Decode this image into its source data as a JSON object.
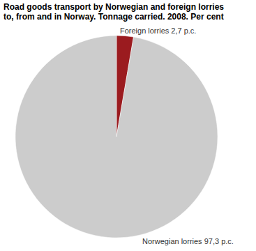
{
  "chart_data": {
    "type": "pie",
    "title": "Road goods transport by Norwegian and foreign lorries\nto, from and in Norway. Tonnage carried. 2008. Per cent",
    "categories": [
      "Foreign lorries",
      "Norwegian lorries"
    ],
    "values": [
      2.7,
      97.3
    ],
    "value_labels": [
      "2,7 p.c.",
      "97,3 p.c."
    ],
    "colors": [
      "#9b1b1f",
      "#cccccc"
    ],
    "data_labels": true
  }
}
